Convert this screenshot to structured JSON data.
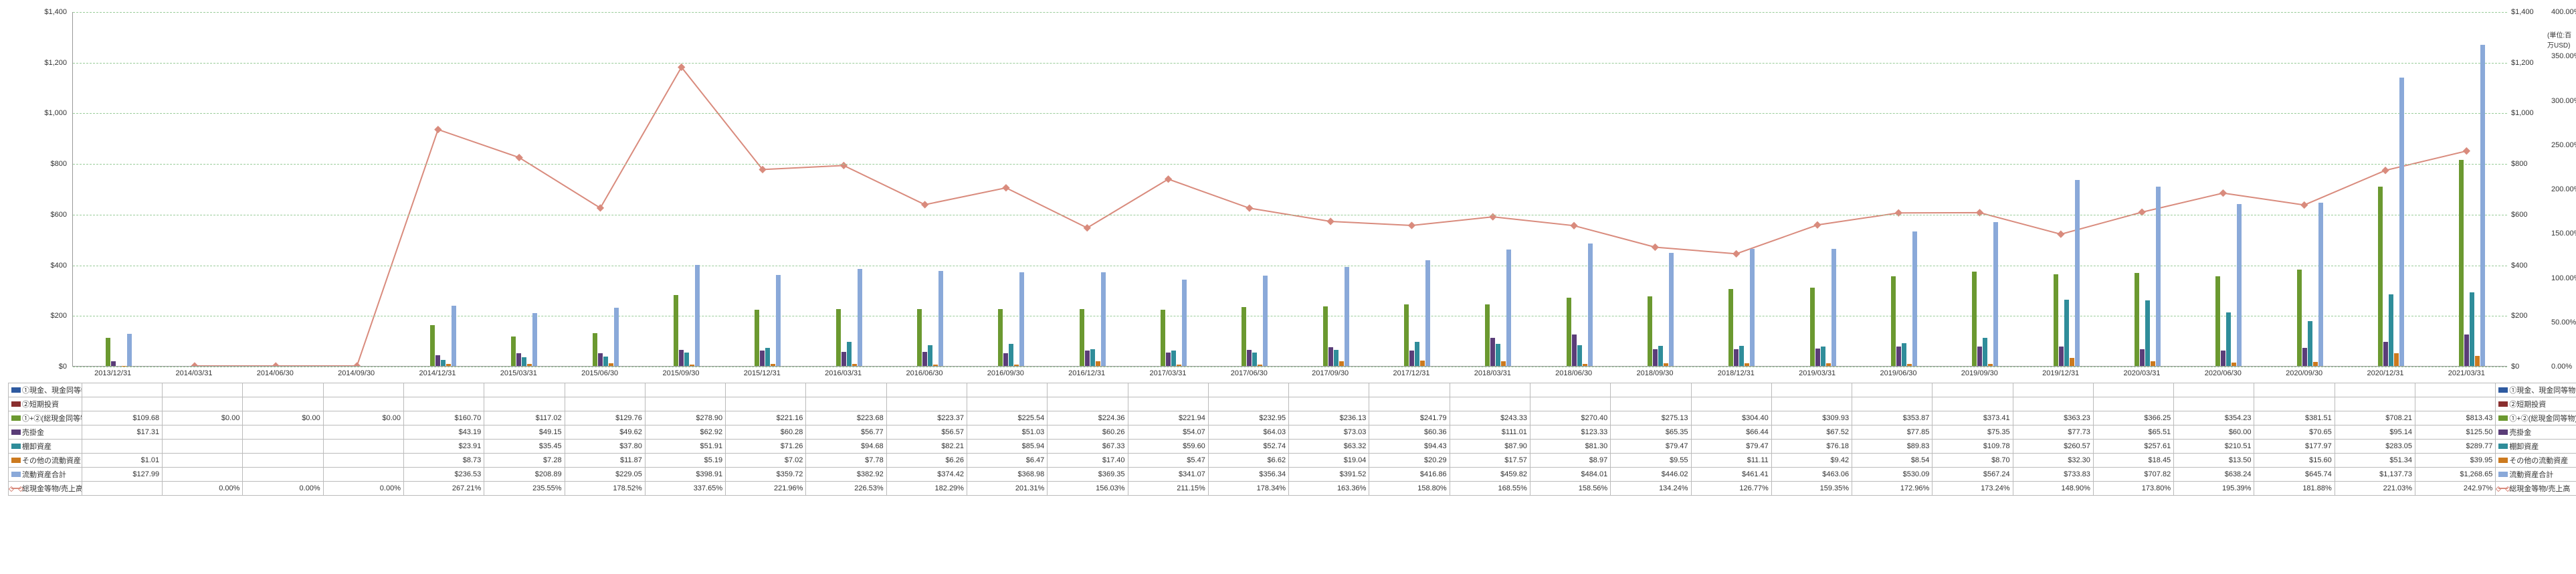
{
  "unit_label": "(単位:百万USD)",
  "chart": {
    "type": "bar+line",
    "background_color": "#ffffff",
    "grid_color": "#99cc99",
    "y_left": {
      "min": 0,
      "max": 1400,
      "step": 200,
      "prefix": "$",
      "format": "comma"
    },
    "y_right1": {
      "min": 0,
      "max": 1400,
      "step": 200,
      "prefix": "$",
      "format": "comma"
    },
    "y_right2": {
      "min": 0,
      "max": 400,
      "step": 50,
      "suffix": "%",
      "format": "pct"
    },
    "line_color": "#d98b7d",
    "line_marker": "diamond"
  },
  "series": [
    {
      "key": "cash",
      "label": "①現金、現金同等物",
      "color": "#2e5aa0",
      "type": "bar"
    },
    {
      "key": "st_inv",
      "label": "②短期投資",
      "color": "#8a2f2f",
      "type": "bar"
    },
    {
      "key": "total_cash",
      "label": "①+②(総現金同等物)",
      "color": "#6b9930",
      "type": "bar"
    },
    {
      "key": "ar",
      "label": "売掛金",
      "color": "#5a3d78",
      "type": "bar"
    },
    {
      "key": "inventory",
      "label": "棚卸資産",
      "color": "#2f8d9a",
      "type": "bar"
    },
    {
      "key": "other_ca",
      "label": "その他の流動資産",
      "color": "#cc7a1f",
      "type": "bar"
    },
    {
      "key": "ca_total",
      "label": "流動資産合計",
      "color": "#8aa9d9",
      "type": "bar"
    },
    {
      "key": "ratio",
      "label": "総現金等物/売上高",
      "color": "#d98b7d",
      "type": "line"
    }
  ],
  "periods": [
    "2013/12/31",
    "2014/03/31",
    "2014/06/30",
    "2014/09/30",
    "2014/12/31",
    "2015/03/31",
    "2015/06/30",
    "2015/09/30",
    "2015/12/31",
    "2016/03/31",
    "2016/06/30",
    "2016/09/30",
    "2016/12/31",
    "2017/03/31",
    "2017/06/30",
    "2017/09/30",
    "2017/12/31",
    "2018/03/31",
    "2018/06/30",
    "2018/09/30",
    "2018/12/31",
    "2019/03/31",
    "2019/06/30",
    "2019/09/30",
    "2019/12/31",
    "2020/03/31",
    "2020/06/30",
    "2020/09/30",
    "2020/12/31",
    "2021/03/31"
  ],
  "rows": {
    "cash": [
      null,
      null,
      null,
      null,
      null,
      null,
      null,
      null,
      null,
      null,
      null,
      null,
      null,
      null,
      null,
      null,
      null,
      null,
      null,
      null,
      null,
      null,
      null,
      null,
      null,
      null,
      null,
      null,
      null,
      null
    ],
    "st_inv": [
      null,
      null,
      null,
      null,
      null,
      null,
      null,
      null,
      null,
      null,
      null,
      null,
      null,
      null,
      null,
      null,
      null,
      null,
      null,
      null,
      null,
      null,
      null,
      null,
      null,
      null,
      null,
      null,
      null,
      null
    ],
    "total_cash": [
      "$109.68",
      "$0.00",
      "$0.00",
      "$0.00",
      "$160.70",
      "$117.02",
      "$129.76",
      "$278.90",
      "$221.16",
      "$223.68",
      "$223.37",
      "$225.54",
      "$224.36",
      "$221.94",
      "$232.95",
      "$236.13",
      "$241.79",
      "$243.33",
      "$270.40",
      "$275.13",
      "$304.40",
      "$309.93",
      "$353.87",
      "$373.41",
      "$363.23",
      "$366.25",
      "$354.23",
      "$381.51",
      "$708.21",
      "$813.43"
    ],
    "ar": [
      "$17.31",
      null,
      null,
      null,
      "$43.19",
      "$49.15",
      "$49.62",
      "$62.92",
      "$60.28",
      "$56.77",
      "$56.57",
      "$51.03",
      "$60.26",
      "$54.07",
      "$64.03",
      "$73.03",
      "$60.36",
      "$111.01",
      "$123.33",
      "$65.35",
      "$66.44",
      "$67.52",
      "$77.85",
      "$75.35",
      "$77.73",
      "$65.51",
      "$60.00",
      "$70.65",
      "$95.14",
      "$125.50"
    ],
    "inventory": [
      null,
      null,
      null,
      null,
      "$23.91",
      "$35.45",
      "$37.80",
      "$51.91",
      "$71.26",
      "$94.68",
      "$82.21",
      "$85.94",
      "$67.33",
      "$59.60",
      "$52.74",
      "$63.32",
      "$94.43",
      "$87.90",
      "$81.30",
      "$79.47",
      "$79.47",
      "$76.18",
      "$89.83",
      "$109.78",
      "$260.57",
      "$257.61",
      "$210.51",
      "$177.97",
      "$283.05",
      "$289.77"
    ],
    "other_ca": [
      "$1.01",
      null,
      null,
      null,
      "$8.73",
      "$7.28",
      "$11.87",
      "$5.19",
      "$7.02",
      "$7.78",
      "$6.26",
      "$6.47",
      "$17.40",
      "$5.47",
      "$6.62",
      "$19.04",
      "$20.29",
      "$17.57",
      "$8.97",
      "$9.55",
      "$11.11",
      "$9.42",
      "$8.54",
      "$8.70",
      "$32.30",
      "$18.45",
      "$13.50",
      "$15.60",
      "$51.34",
      "$39.95"
    ],
    "ca_total": [
      "$127.99",
      null,
      null,
      null,
      "$236.53",
      "$208.89",
      "$229.05",
      "$398.91",
      "$359.72",
      "$382.92",
      "$374.42",
      "$368.98",
      "$369.35",
      "$341.07",
      "$356.34",
      "$391.52",
      "$416.86",
      "$459.82",
      "$484.01",
      "$446.02",
      "$461.41",
      "$463.06",
      "$530.09",
      "$567.24",
      "$733.83",
      "$707.82",
      "$638.24",
      "$645.74",
      "$1,137.73",
      "$1,268.65"
    ],
    "ratio": [
      null,
      "0.00%",
      "0.00%",
      "0.00%",
      "267.21%",
      "235.55%",
      "178.52%",
      "337.65%",
      "221.96%",
      "226.53%",
      "182.29%",
      "201.31%",
      "156.03%",
      "211.15%",
      "178.34%",
      "163.36%",
      "158.80%",
      "168.55%",
      "158.56%",
      "134.24%",
      "126.77%",
      "159.35%",
      "172.96%",
      "173.24%",
      "148.90%",
      "173.80%",
      "195.39%",
      "181.88%",
      "221.03%",
      "242.97%"
    ]
  },
  "bars_numeric": {
    "total_cash": [
      109.68,
      0,
      0,
      0,
      160.7,
      117.02,
      129.76,
      278.9,
      221.16,
      223.68,
      223.37,
      225.54,
      224.36,
      221.94,
      232.95,
      236.13,
      241.79,
      243.33,
      270.4,
      275.13,
      304.4,
      309.93,
      353.87,
      373.41,
      363.23,
      366.25,
      354.23,
      381.51,
      708.21,
      813.43
    ],
    "ar": [
      17.31,
      0,
      0,
      0,
      43.19,
      49.15,
      49.62,
      62.92,
      60.28,
      56.77,
      56.57,
      51.03,
      60.26,
      54.07,
      64.03,
      73.03,
      60.36,
      111.01,
      123.33,
      65.35,
      66.44,
      67.52,
      77.85,
      75.35,
      77.73,
      65.51,
      60.0,
      70.65,
      95.14,
      125.5
    ],
    "inventory": [
      0,
      0,
      0,
      0,
      23.91,
      35.45,
      37.8,
      51.91,
      71.26,
      94.68,
      82.21,
      85.94,
      67.33,
      59.6,
      52.74,
      63.32,
      94.43,
      87.9,
      81.3,
      79.47,
      79.47,
      76.18,
      89.83,
      109.78,
      260.57,
      257.61,
      210.51,
      177.97,
      283.05,
      289.77
    ],
    "other_ca": [
      1.01,
      0,
      0,
      0,
      8.73,
      7.28,
      11.87,
      5.19,
      7.02,
      7.78,
      6.26,
      6.47,
      17.4,
      5.47,
      6.62,
      19.04,
      20.29,
      17.57,
      8.97,
      9.55,
      11.11,
      9.42,
      8.54,
      8.7,
      32.3,
      18.45,
      13.5,
      15.6,
      51.34,
      39.95
    ],
    "ca_total": [
      127.99,
      0,
      0,
      0,
      236.53,
      208.89,
      229.05,
      398.91,
      359.72,
      382.92,
      374.42,
      368.98,
      369.35,
      341.07,
      356.34,
      391.52,
      416.86,
      459.82,
      484.01,
      446.02,
      461.41,
      463.06,
      530.09,
      567.24,
      733.83,
      707.82,
      638.24,
      645.74,
      1137.73,
      1268.65
    ]
  },
  "line_numeric": [
    null,
    0,
    0,
    0,
    267.21,
    235.55,
    178.52,
    337.65,
    221.96,
    226.53,
    182.29,
    201.31,
    156.03,
    211.15,
    178.34,
    163.36,
    158.8,
    168.55,
    158.56,
    134.24,
    126.77,
    159.35,
    172.96,
    173.24,
    148.9,
    173.8,
    195.39,
    181.88,
    221.03,
    242.97
  ]
}
